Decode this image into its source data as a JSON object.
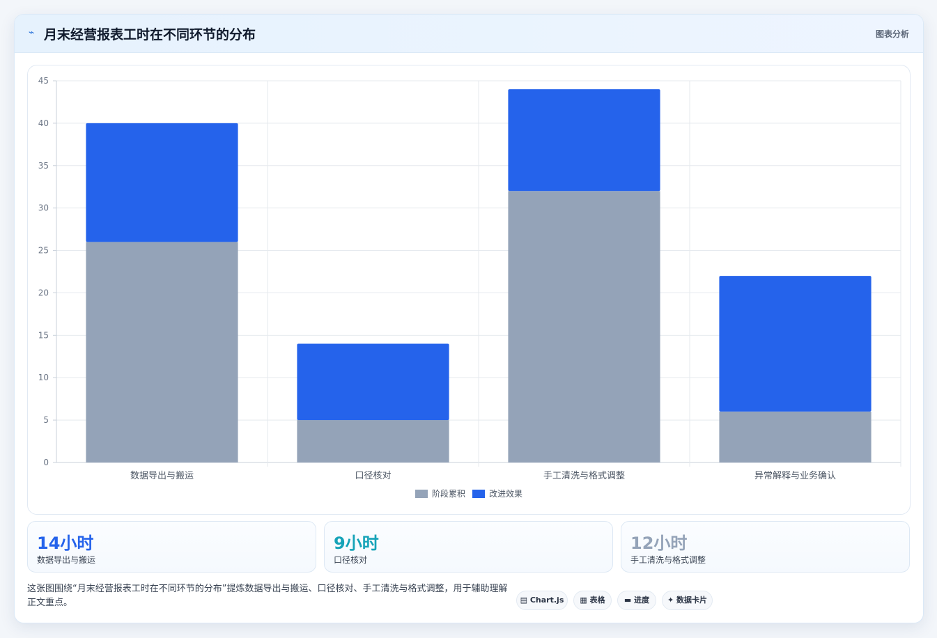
{
  "header": {
    "icon": "chart-line-icon",
    "title": "月末经营报表工时在不同环节的分布",
    "link": "图表分析"
  },
  "chart_data": {
    "type": "bar",
    "stacked": true,
    "categories": [
      "数据导出与搬运",
      "口径核对",
      "手工清洗与格式调整",
      "异常解释与业务确认"
    ],
    "series": [
      {
        "name": "阶段累积",
        "values": [
          26,
          5,
          32,
          6
        ],
        "color": "#94a3b8"
      },
      {
        "name": "改进效果",
        "values": [
          14,
          9,
          12,
          16
        ],
        "color": "#2563eb"
      }
    ],
    "ylim": [
      0,
      45
    ],
    "yticks": [
      "0",
      "5",
      "10",
      "15",
      "20",
      "25",
      "30",
      "35",
      "40",
      "45"
    ],
    "grid": true,
    "legend": "bottom"
  },
  "stats": [
    {
      "value": "14小时",
      "label": "数据导出与搬运",
      "color": "#2563eb"
    },
    {
      "value": "9小时",
      "label": "口径核对",
      "color": "#16a3b8"
    },
    {
      "value": "12小时",
      "label": "手工清洗与格式调整",
      "color": "#94a3b8"
    }
  ],
  "note": "这张图围绕“月末经营报表工时在不同环节的分布”提炼数据导出与搬运、口径核对、手工清洗与格式调整，用于辅助理解正文重点。",
  "tags": [
    {
      "icon": "chart-icon",
      "glyph": "▤",
      "label": "Chart.js"
    },
    {
      "icon": "table-icon",
      "glyph": "▦",
      "label": "表格"
    },
    {
      "icon": "progress-icon",
      "glyph": "▬",
      "label": "进度"
    },
    {
      "icon": "sparkle-icon",
      "glyph": "✦",
      "label": "数据卡片"
    }
  ]
}
